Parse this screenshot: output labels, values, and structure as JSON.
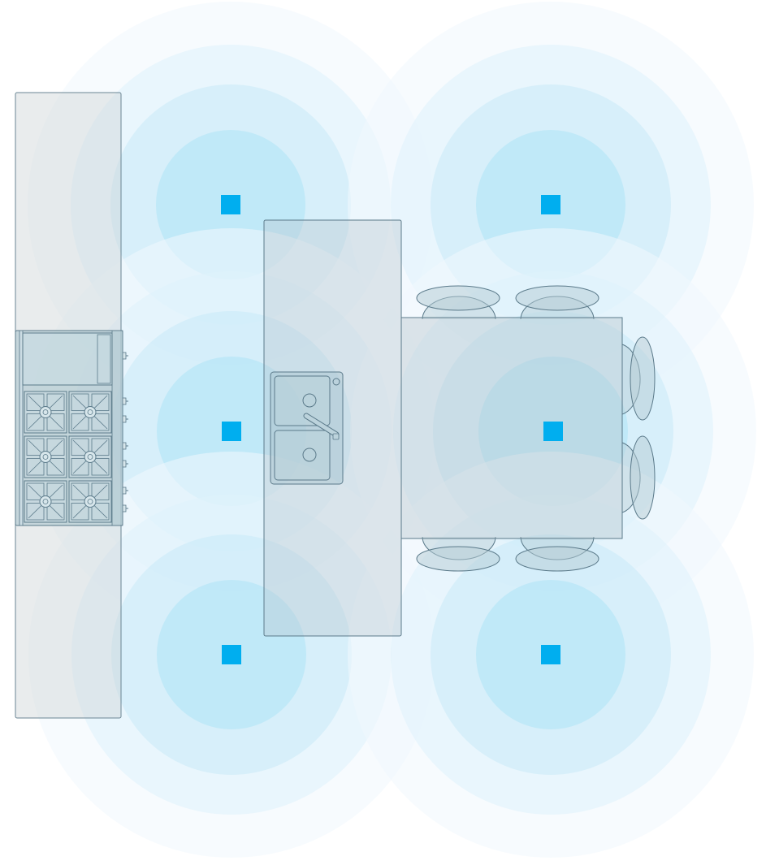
{
  "colors": {
    "background": "#ffffff",
    "ring_outer": "#f0f8fd",
    "ring_2": "#dff2fb",
    "ring_3": "#c8eaf8",
    "ring_inner": "#ade3f6",
    "light_marker": "#00aeef",
    "counter_fill": "#cfd4d8",
    "furniture_stroke": "#5b7a8a",
    "range_fill": "#a8c2cc"
  },
  "icons": {
    "light": "square-light-icon",
    "burner": "burner-grate-icon",
    "sink": "double-sink-icon",
    "faucet": "faucet-icon",
    "knob": "control-knob-icon",
    "chair": "chair-icon"
  },
  "lights": [
    {
      "name": "light-top-left",
      "rings": 4
    },
    {
      "name": "light-top-right",
      "rings": 4
    },
    {
      "name": "light-middle-left",
      "rings": 4
    },
    {
      "name": "light-middle-right",
      "rings": 4
    },
    {
      "name": "light-bottom-left",
      "rings": 4
    },
    {
      "name": "light-bottom-right",
      "rings": 4
    }
  ],
  "furniture": {
    "range_burner_count": 6,
    "sink_basin_count": 2,
    "table_chairs": 6
  }
}
